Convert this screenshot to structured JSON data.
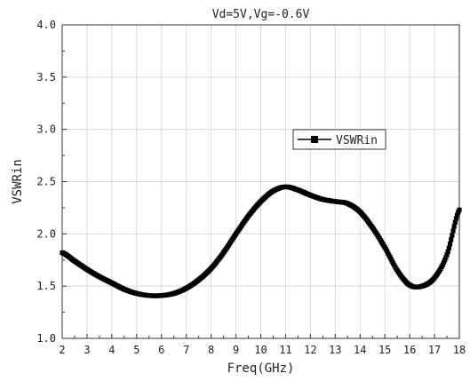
{
  "chart_data": {
    "type": "scatter",
    "title": "Vd=5V,Vg=-0.6V",
    "xlabel": "Freq(GHz)",
    "ylabel": "VSWRin",
    "xlim": [
      2,
      18
    ],
    "ylim": [
      1.0,
      4.0
    ],
    "xticks": [
      "2",
      "3",
      "4",
      "5",
      "6",
      "7",
      "8",
      "9",
      "10",
      "11",
      "12",
      "13",
      "14",
      "15",
      "16",
      "17",
      "18"
    ],
    "yticks": [
      "1.0",
      "1.5",
      "2.0",
      "2.5",
      "3.0",
      "3.5",
      "4.0"
    ],
    "grid": true,
    "legend": {
      "position": "center-right",
      "entries": [
        "VSWRin"
      ]
    },
    "marker": "square",
    "series": [
      {
        "name": "VSWRin",
        "color": "#000000",
        "x": [
          2.0,
          2.5,
          3.0,
          3.5,
          4.0,
          4.5,
          5.0,
          5.5,
          6.0,
          6.5,
          7.0,
          7.5,
          8.0,
          8.5,
          9.0,
          9.5,
          10.0,
          10.5,
          11.0,
          11.5,
          12.0,
          12.5,
          13.0,
          13.5,
          14.0,
          14.5,
          15.0,
          15.5,
          16.0,
          16.5,
          17.0,
          17.5,
          18.0
        ],
        "y": [
          1.82,
          1.74,
          1.66,
          1.59,
          1.53,
          1.47,
          1.43,
          1.41,
          1.41,
          1.43,
          1.48,
          1.56,
          1.67,
          1.82,
          2.0,
          2.17,
          2.31,
          2.41,
          2.45,
          2.42,
          2.37,
          2.33,
          2.31,
          2.29,
          2.21,
          2.06,
          1.87,
          1.65,
          1.51,
          1.5,
          1.58,
          1.8,
          2.23
        ]
      }
    ]
  }
}
